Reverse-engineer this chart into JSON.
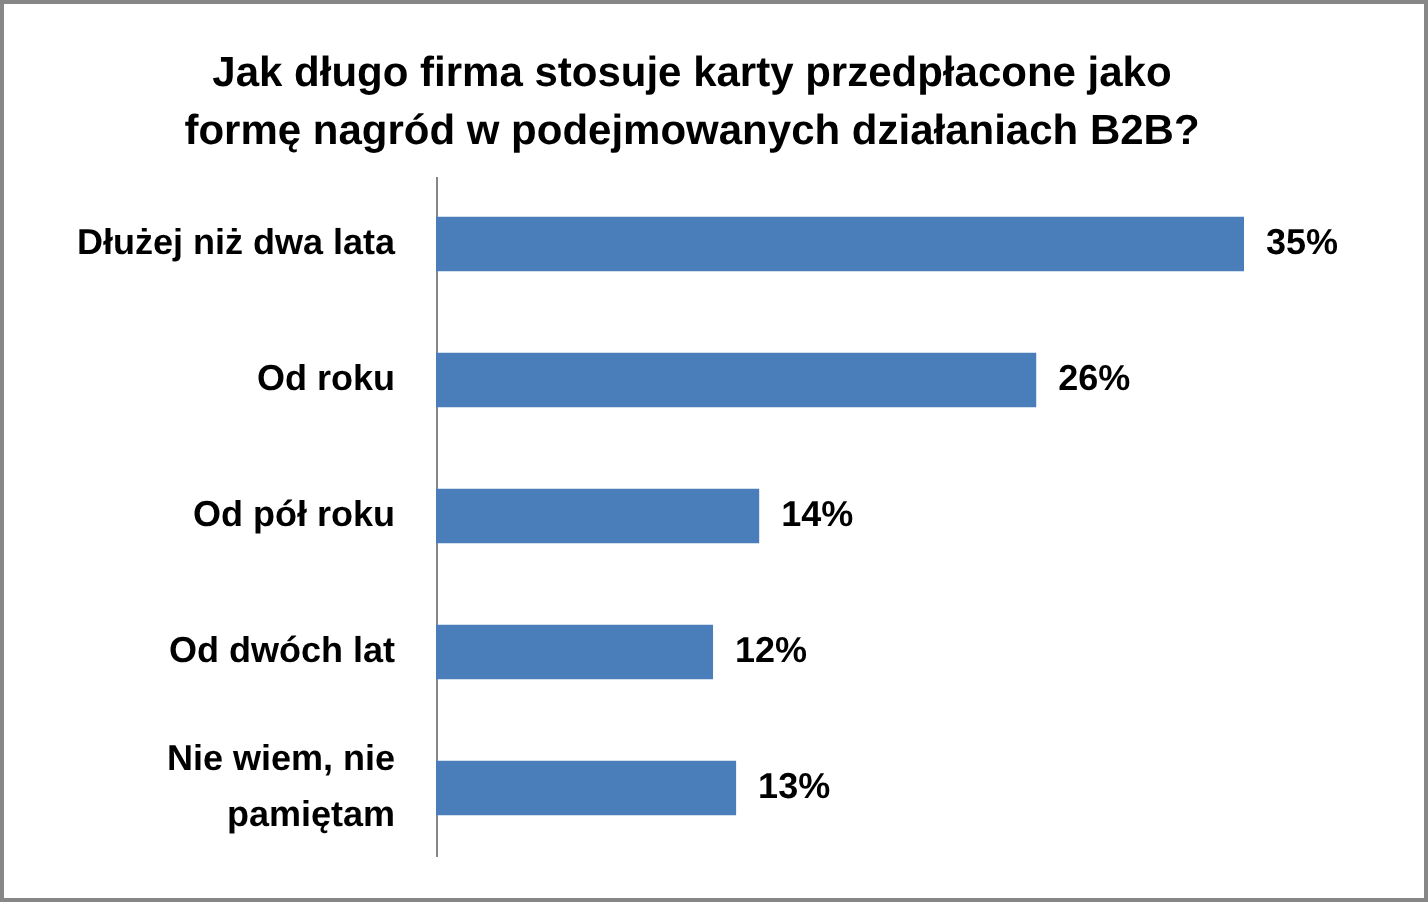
{
  "chart_data": {
    "type": "bar",
    "orientation": "horizontal",
    "title": "Jak długo firma stosuje karty przedpłacone jako formę nagród w podejmowanych działaniach B2B?",
    "categories": [
      "Dłużej niż dwa lata",
      "Od roku",
      "Od pół roku",
      "Od dwóch lat",
      "Nie wiem, nie pamiętam"
    ],
    "values": [
      35,
      26,
      14,
      12,
      13
    ],
    "color": "#4a7ebb",
    "value_labels": [
      "35%",
      "26%",
      "14%",
      "12%",
      "13%"
    ]
  }
}
